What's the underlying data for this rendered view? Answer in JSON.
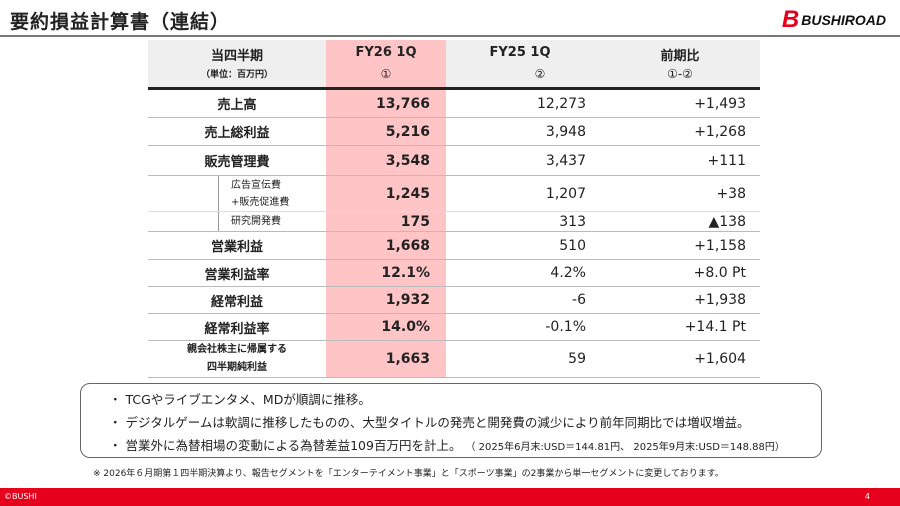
{
  "title": "要約損益計算書（連結）",
  "logo": {
    "mark": "B",
    "text": "BUSHIROAD",
    "color": "#e5001c"
  },
  "table": {
    "headers": [
      {
        "top": "当四半期",
        "bottom": "（単位：百万円）"
      },
      {
        "top": "FY26 1Q",
        "bottom": "①"
      },
      {
        "top": "FY25 1Q",
        "bottom": "②"
      },
      {
        "top": "前期比",
        "bottom": "①-②"
      }
    ],
    "rows": [
      {
        "label": "売上高",
        "fy26": "13,766",
        "fy25": "12,273",
        "diff": "+1,493"
      },
      {
        "label": "売上総利益",
        "fy26": "5,216",
        "fy25": "3,948",
        "diff": "+1,268"
      },
      {
        "label": "販売管理費",
        "fy26": "3,548",
        "fy25": "3,437",
        "diff": "+111"
      },
      {
        "label": "広告宣伝費\n+販売促進費",
        "fy26": "1,245",
        "fy25": "1,207",
        "diff": "+38"
      },
      {
        "label": "研究開発費",
        "fy26": "175",
        "fy25": "313",
        "diff": "▲138"
      },
      {
        "label": "営業利益",
        "fy26": "1,668",
        "fy25": "510",
        "diff": "+1,158"
      },
      {
        "label": "営業利益率",
        "fy26": "12.1%",
        "fy25": "4.2%",
        "diff": "+8.0 Pt"
      },
      {
        "label": "経常利益",
        "fy26": "1,932",
        "fy25": "-6",
        "diff": "+1,938"
      },
      {
        "label": "経常利益率",
        "fy26": "14.0%",
        "fy25": "-0.1%",
        "diff": "+14.1 Pt"
      },
      {
        "label": "親会社株主に帰属する\n四半期純利益",
        "fy26": "1,663",
        "fy25": "59",
        "diff": "+1,604"
      }
    ]
  },
  "bullets": [
    "・ TCGやライブエンタメ、MDが順調に推移。",
    "・ デジタルゲームは軟調に推移したものの、大型タイトルの発売と開発費の減少により前年同期比では増収増益。",
    "・ 営業外に為替相場の変動による為替差益109百万円を計上。"
  ],
  "fx_note": "（ 2025年6月末:USD＝144.81円、 2025年9月末:USD＝148.88円）",
  "footnote": "※ 2026年６月期第１四半期決算より、報告セグメントを「エンターテイメント事業」と「スポーツ事業」の2事業から単一セグメントに変更しております。",
  "footer": {
    "copyright": "©BUSHI",
    "page": "4"
  }
}
